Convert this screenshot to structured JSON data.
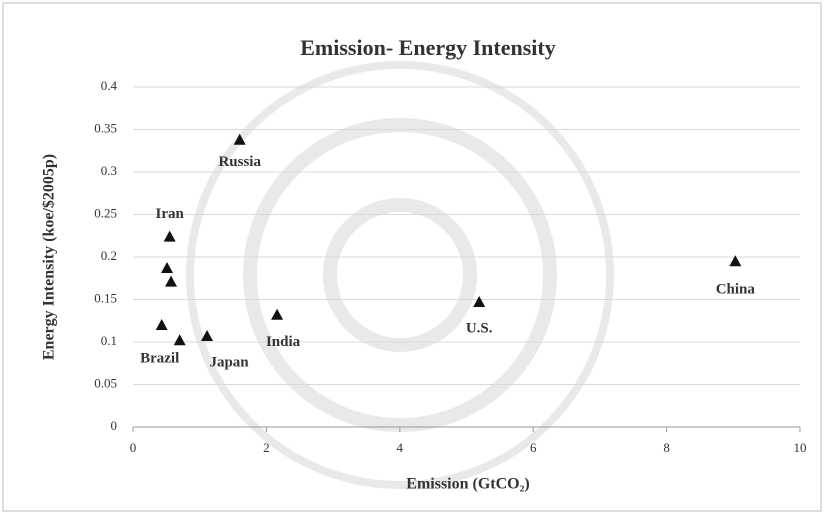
{
  "chart_data": {
    "type": "scatter",
    "title": "Emission- Energy Intensity",
    "x_label": "Emission (GtCO₂)",
    "y_label": "Energy Intensity (koe/$2005p)",
    "x": [
      1.6,
      0.55,
      0.51,
      0.57,
      0.43,
      0.7,
      1.11,
      2.16,
      5.19,
      9.03
    ],
    "values": [
      0.338,
      0.224,
      0.187,
      0.171,
      0.12,
      0.102,
      0.107,
      0.132,
      0.147,
      0.195
    ],
    "point_labels": [
      "Russia",
      "Iran",
      null,
      null,
      "Brazil",
      null,
      "Japan",
      "India",
      "U.S.",
      "China"
    ],
    "color": "#111111",
    "xlim": [
      0,
      10
    ],
    "xticks": [
      0,
      2,
      4,
      6,
      8,
      10
    ],
    "ylim": [
      0,
      0.4
    ],
    "yticks": [
      0,
      0.05,
      0.1,
      0.15,
      0.2,
      0.25,
      0.3,
      0.35,
      0.4
    ],
    "grid": true
  }
}
